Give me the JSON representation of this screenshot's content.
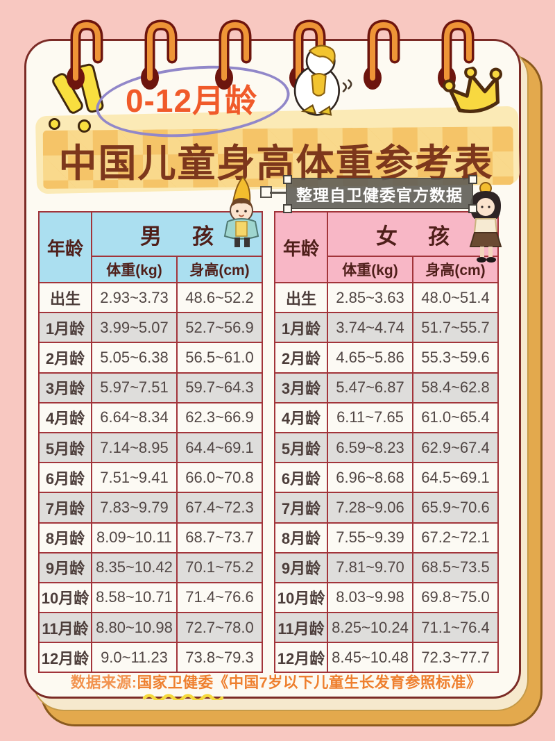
{
  "header": {
    "age_range_badge": "0-12月龄",
    "main_title": "中国儿童身高体重参考表",
    "source_badge": "整理自卫健委官方数据"
  },
  "footer": {
    "prefix": "数据来源:",
    "source": "国家卫健委《中国7岁以下儿童生长发育参照标准》"
  },
  "icons": {
    "binder_rings": "spiral-binder-ring-icon",
    "exclamation": "exclamation-doodle-icon",
    "duck": "duck-mascot-icon",
    "crown": "crown-icon",
    "boy": "boy-character-icon",
    "girl": "girl-character-icon"
  },
  "colors": {
    "background_pink": "#f8c8c1",
    "page_white": "#fdfaf2",
    "page_border_maroon": "#7b2b26",
    "page_gold_edge": "#e3a94d",
    "table_border": "#a2343a",
    "boy_header_blue": "#abdff0",
    "girl_header_pink": "#f8b7c6",
    "row_gray": "#dedddb",
    "title_brown": "#7d371c",
    "badge_orange": "#f05a2a",
    "footer_orange": "#ee7f2e",
    "tape_yellow": "#f5c468"
  },
  "chart_data": [
    {
      "type": "table",
      "title": "男孩",
      "columns": [
        "年龄",
        "体重(kg)",
        "身高(cm)"
      ],
      "rows": [
        [
          "出生",
          "2.93~3.73",
          "48.6~52.2"
        ],
        [
          "1月龄",
          "3.99~5.07",
          "52.7~56.9"
        ],
        [
          "2月龄",
          "5.05~6.38",
          "56.5~61.0"
        ],
        [
          "3月龄",
          "5.97~7.51",
          "59.7~64.3"
        ],
        [
          "4月龄",
          "6.64~8.34",
          "62.3~66.9"
        ],
        [
          "5月龄",
          "7.14~8.95",
          "64.4~69.1"
        ],
        [
          "6月龄",
          "7.51~9.41",
          "66.0~70.8"
        ],
        [
          "7月龄",
          "7.83~9.79",
          "67.4~72.3"
        ],
        [
          "8月龄",
          "8.09~10.11",
          "68.7~73.7"
        ],
        [
          "9月龄",
          "8.35~10.42",
          "70.1~75.2"
        ],
        [
          "10月龄",
          "8.58~10.71",
          "71.4~76.6"
        ],
        [
          "11月龄",
          "8.80~10.98",
          "72.7~78.0"
        ],
        [
          "12月龄",
          "9.0~11.23",
          "73.8~79.3"
        ]
      ]
    },
    {
      "type": "table",
      "title": "女孩",
      "columns": [
        "年龄",
        "体重(kg)",
        "身高(cm)"
      ],
      "rows": [
        [
          "出生",
          "2.85~3.63",
          "48.0~51.4"
        ],
        [
          "1月龄",
          "3.74~4.74",
          "51.7~55.7"
        ],
        [
          "2月龄",
          "4.65~5.86",
          "55.3~59.6"
        ],
        [
          "3月龄",
          "5.47~6.87",
          "58.4~62.8"
        ],
        [
          "4月龄",
          "6.11~7.65",
          "61.0~65.4"
        ],
        [
          "5月龄",
          "6.59~8.23",
          "62.9~67.4"
        ],
        [
          "6月龄",
          "6.96~8.68",
          "64.5~69.1"
        ],
        [
          "7月龄",
          "7.28~9.06",
          "65.9~70.6"
        ],
        [
          "8月龄",
          "7.55~9.39",
          "67.2~72.1"
        ],
        [
          "9月龄",
          "7.81~9.70",
          "68.5~73.5"
        ],
        [
          "10月龄",
          "8.03~9.98",
          "69.8~75.0"
        ],
        [
          "11月龄",
          "8.25~10.24",
          "71.1~76.4"
        ],
        [
          "12月龄",
          "8.45~10.48",
          "72.3~77.7"
        ]
      ]
    }
  ]
}
